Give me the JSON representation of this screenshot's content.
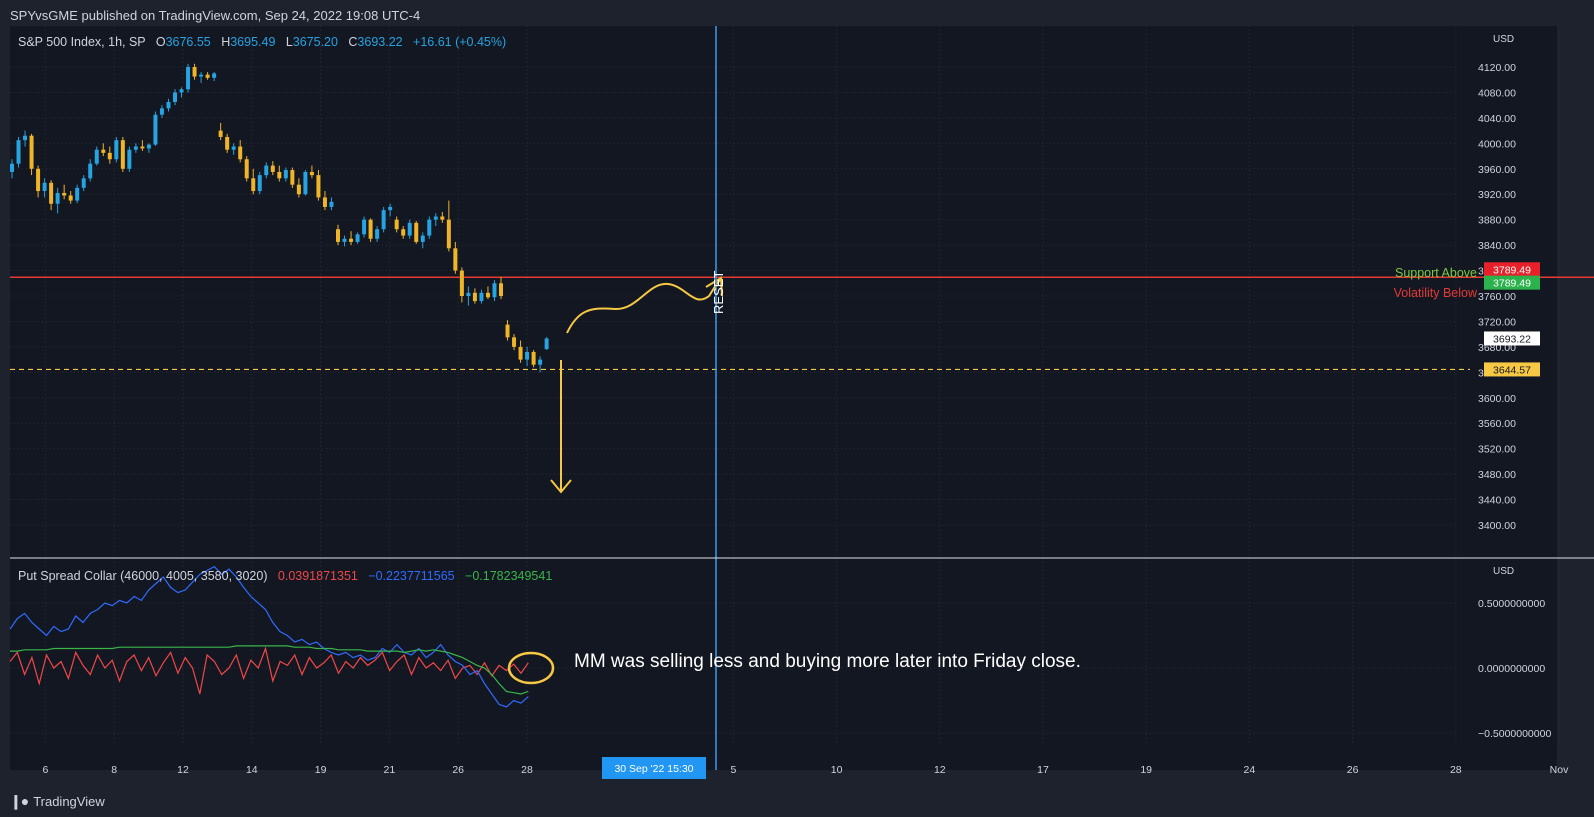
{
  "header": {
    "attribution": "SPYvsGME published on TradingView.com, Sep 24, 2022 19:08 UTC-4"
  },
  "footer": {
    "brand": "TradingView",
    "logo_icon": "tradingview-logo-icon"
  },
  "main_pane": {
    "symbol": "S&P 500 Index, 1h, SP",
    "open_label": "O",
    "open": "3676.55",
    "high_label": "H",
    "high": "3695.49",
    "low_label": "L",
    "low": "3675.20",
    "close_label": "C",
    "close": "3693.22",
    "change": "+16.61 (+0.45%)",
    "currency": "USD",
    "support_label": "Support Above",
    "volatility_label": "Volatility Below",
    "reset_label": "RESET"
  },
  "indicator_pane": {
    "title": "Put Spread Collar (46000, 4005, 3580, 3020)",
    "value_red": "0.0391871351",
    "value_blue": "−0.2237711565",
    "value_green": "−0.1782349541",
    "currency": "USD",
    "note": "MM was selling less and buying more later into Friday close."
  },
  "colors": {
    "background": "#131722",
    "frame": "#1e222d",
    "up": "#26a3e0",
    "down": "#f0b429",
    "support_line": "#e53935",
    "dashed_level": "#f7c843",
    "cursor_line": "#3d9be9",
    "annotation": "#f7c843",
    "series_red": "#f04848",
    "series_blue": "#2f6bff",
    "series_green": "#3ab54a"
  },
  "chart_data": [
    {
      "type": "candlestick",
      "title": "S&P 500 Index, 1h, SP",
      "y_axis_ticks": [
        3400,
        3440,
        3480,
        3520,
        3560,
        3600,
        3640,
        3680,
        3720,
        3760,
        3800,
        3840,
        3880,
        3920,
        3960,
        4000,
        4040,
        4080,
        4120
      ],
      "y_axis_labels": [
        "3400.00",
        "3440.00",
        "3480.00",
        "3520.00",
        "3560.00",
        "3600.00",
        "3640.00",
        "3680.00",
        "3720.00",
        "3760.00",
        "3800.00",
        "3840.00",
        "3880.00",
        "3920.00",
        "3960.00",
        "4000.00",
        "4040.00",
        "4080.00",
        "4120.00"
      ],
      "ylim": [
        3365,
        4160
      ],
      "x_axis_ticks": [
        {
          "label": "6",
          "t": 4
        },
        {
          "label": "8",
          "t": 12
        },
        {
          "label": "12",
          "t": 20
        },
        {
          "label": "14",
          "t": 28
        },
        {
          "label": "19",
          "t": 36
        },
        {
          "label": "21",
          "t": 44
        },
        {
          "label": "26",
          "t": 52
        },
        {
          "label": "28",
          "t": 60
        },
        {
          "label": "5",
          "t": 84
        },
        {
          "label": "10",
          "t": 96
        },
        {
          "label": "12",
          "t": 108
        },
        {
          "label": "17",
          "t": 120
        },
        {
          "label": "19",
          "t": 132
        },
        {
          "label": "24",
          "t": 144
        },
        {
          "label": "26",
          "t": 156
        },
        {
          "label": "28",
          "t": 168
        },
        {
          "label": "Nov",
          "t": 180
        }
      ],
      "cursor": {
        "label": "30 Sep '22   15:30",
        "t": 75
      },
      "price_labels": [
        {
          "label": "3789.49",
          "value": 3802,
          "kind": "support"
        },
        {
          "label": "3789.49",
          "value": 3781,
          "kind": "volatility"
        },
        {
          "label": "3693.22",
          "value": 3693.22,
          "kind": "last"
        },
        {
          "label": "3644.57",
          "value": 3644.57,
          "kind": "level"
        }
      ],
      "horizontal_levels": [
        {
          "value": 3789.49,
          "style": "solid"
        },
        {
          "value": 3644.57,
          "style": "dashed"
        }
      ],
      "series": [
        {
          "name": "S&P 500 Index",
          "ohlc": [
            [
              3955,
              3975,
              3945,
              3968
            ],
            [
              3968,
              4010,
              3962,
              4005
            ],
            [
              4005,
              4020,
              3995,
              4012
            ],
            [
              4012,
              4015,
              3950,
              3960
            ],
            [
              3960,
              3965,
              3915,
              3925
            ],
            [
              3925,
              3945,
              3915,
              3938
            ],
            [
              3938,
              3942,
              3895,
              3905
            ],
            [
              3905,
              3930,
              3890,
              3922
            ],
            [
              3922,
              3935,
              3912,
              3918
            ],
            [
              3918,
              3925,
              3905,
              3910
            ],
            [
              3910,
              3935,
              3906,
              3930
            ],
            [
              3930,
              3950,
              3925,
              3945
            ],
            [
              3945,
              3975,
              3940,
              3968
            ],
            [
              3968,
              3995,
              3965,
              3990
            ],
            [
              3990,
              4000,
              3980,
              3985
            ],
            [
              3985,
              3995,
              3968,
              3975
            ],
            [
              3975,
              4010,
              3970,
              4005
            ],
            [
              4005,
              4010,
              3955,
              3960
            ],
            [
              3960,
              3995,
              3955,
              3990
            ],
            [
              3990,
              4000,
              3985,
              3995
            ],
            [
              3995,
              4005,
              3988,
              3992
            ],
            [
              3992,
              4000,
              3985,
              3998
            ],
            [
              3998,
              4050,
              3996,
              4045
            ],
            [
              4045,
              4060,
              4040,
              4055
            ],
            [
              4055,
              4070,
              4050,
              4065
            ],
            [
              4065,
              4085,
              4060,
              4080
            ],
            [
              4080,
              4088,
              4072,
              4085
            ],
            [
              4085,
              4125,
              4080,
              4120
            ],
            [
              4120,
              4125,
              4100,
              4105
            ],
            [
              4105,
              4112,
              4095,
              4108
            ],
            [
              4108,
              4112,
              4100,
              4103
            ],
            [
              4103,
              4112,
              4098,
              4110
            ],
            [
              4020,
              4032,
              4005,
              4010
            ],
            [
              4010,
              4015,
              3985,
              3990
            ],
            [
              3990,
              4000,
              3982,
              3995
            ],
            [
              3995,
              4005,
              3970,
              3975
            ],
            [
              3975,
              3980,
              3940,
              3945
            ],
            [
              3945,
              3960,
              3920,
              3925
            ],
            [
              3925,
              3955,
              3920,
              3950
            ],
            [
              3950,
              3970,
              3945,
              3965
            ],
            [
              3965,
              3972,
              3950,
              3955
            ],
            [
              3955,
              3965,
              3940,
              3945
            ],
            [
              3945,
              3962,
              3940,
              3958
            ],
            [
              3958,
              3962,
              3930,
              3935
            ],
            [
              3935,
              3945,
              3915,
              3920
            ],
            [
              3920,
              3958,
              3918,
              3955
            ],
            [
              3955,
              3965,
              3945,
              3950
            ],
            [
              3950,
              3958,
              3910,
              3915
            ],
            [
              3915,
              3925,
              3895,
              3900
            ],
            [
              3900,
              3915,
              3895,
              3908
            ],
            [
              3865,
              3872,
              3840,
              3845
            ],
            [
              3845,
              3855,
              3838,
              3850
            ],
            [
              3850,
              3862,
              3840,
              3845
            ],
            [
              3845,
              3860,
              3842,
              3857
            ],
            [
              3857,
              3885,
              3852,
              3880
            ],
            [
              3880,
              3882,
              3845,
              3850
            ],
            [
              3850,
              3870,
              3845,
              3865
            ],
            [
              3865,
              3900,
              3860,
              3895
            ],
            [
              3895,
              3905,
              3885,
              3900
            ],
            [
              3880,
              3885,
              3860,
              3865
            ],
            [
              3865,
              3870,
              3850,
              3855
            ],
            [
              3855,
              3880,
              3850,
              3875
            ],
            [
              3875,
              3878,
              3842,
              3845
            ],
            [
              3845,
              3860,
              3835,
              3855
            ],
            [
              3855,
              3885,
              3850,
              3880
            ],
            [
              3880,
              3890,
              3870,
              3885
            ],
            [
              3885,
              3892,
              3875,
              3880
            ],
            [
              3880,
              3910,
              3830,
              3835
            ],
            [
              3835,
              3845,
              3795,
              3800
            ],
            [
              3800,
              3805,
              3750,
              3760
            ],
            [
              3760,
              3775,
              3745,
              3765
            ],
            [
              3765,
              3772,
              3748,
              3752
            ],
            [
              3752,
              3770,
              3748,
              3765
            ],
            [
              3765,
              3775,
              3755,
              3758
            ],
            [
              3758,
              3785,
              3752,
              3780
            ],
            [
              3780,
              3790,
              3755,
              3760
            ],
            [
              3715,
              3722,
              3690,
              3695
            ],
            [
              3695,
              3700,
              3675,
              3680
            ],
            [
              3680,
              3690,
              3655,
              3660
            ],
            [
              3660,
              3680,
              3650,
              3672
            ],
            [
              3672,
              3675,
              3648,
              3652
            ],
            [
              3652,
              3665,
              3640,
              3660
            ],
            [
              3676.55,
              3695.49,
              3675.2,
              3693.22
            ]
          ]
        }
      ]
    },
    {
      "type": "line",
      "title": "Put Spread Collar (46000, 4005, 3580, 3020)",
      "y_axis_ticks": [
        0.5,
        0,
        -0.5
      ],
      "y_axis_labels": [
        "0.5000000000",
        "0.0000000000",
        "−0.5000000000"
      ],
      "ylim": [
        -0.72,
        0.82
      ],
      "series": [
        {
          "name": "0.0391871351",
          "color": "red",
          "values": [
            0.05,
            0.12,
            -0.05,
            0.08,
            -0.12,
            0.1,
            0.0,
            0.05,
            -0.08,
            0.12,
            0.02,
            -0.05,
            0.1,
            0.0,
            0.06,
            -0.1,
            0.05,
            0.1,
            -0.02,
            0.08,
            -0.06,
            0.04,
            0.12,
            -0.04,
            0.08,
            0.0,
            -0.2,
            0.1,
            0.05,
            -0.05,
            0.0,
            0.1,
            -0.08,
            0.06,
            0.0,
            0.15,
            -0.1,
            0.05,
            0.02,
            0.1,
            -0.05,
            0.08,
            0.0,
            0.04,
            0.1,
            -0.04,
            0.05,
            0.0,
            0.08,
            0.02,
            0.06,
            0.12,
            -0.02,
            0.05,
            0.1,
            -0.05,
            0.08,
            0.0,
            0.04,
            -0.02,
            0.06,
            -0.08,
            0.0,
            0.02,
            -0.05,
            0.04,
            -0.06,
            0.02,
            -0.02,
            0.03,
            -0.04,
            0.04
          ]
        },
        {
          "name": "−0.2237711565",
          "color": "blue",
          "values": [
            0.3,
            0.38,
            0.42,
            0.35,
            0.3,
            0.25,
            0.32,
            0.28,
            0.3,
            0.4,
            0.35,
            0.42,
            0.45,
            0.5,
            0.48,
            0.52,
            0.5,
            0.55,
            0.52,
            0.6,
            0.65,
            0.7,
            0.62,
            0.58,
            0.6,
            0.66,
            0.72,
            0.75,
            0.78,
            0.72,
            0.76,
            0.7,
            0.62,
            0.55,
            0.5,
            0.45,
            0.35,
            0.28,
            0.25,
            0.2,
            0.22,
            0.18,
            0.2,
            0.15,
            0.12,
            0.1,
            0.12,
            0.08,
            0.1,
            0.06,
            0.08,
            0.15,
            0.12,
            0.18,
            0.12,
            0.1,
            0.15,
            0.08,
            0.12,
            0.18,
            0.1,
            0.05,
            0.02,
            -0.05,
            -0.02,
            -0.12,
            -0.2,
            -0.28,
            -0.3,
            -0.25,
            -0.27,
            -0.22
          ]
        },
        {
          "name": "−0.1782349541",
          "color": "green",
          "values": [
            0.13,
            0.13,
            0.14,
            0.14,
            0.14,
            0.14,
            0.15,
            0.15,
            0.15,
            0.15,
            0.15,
            0.15,
            0.15,
            0.15,
            0.15,
            0.16,
            0.16,
            0.16,
            0.16,
            0.16,
            0.16,
            0.16,
            0.16,
            0.16,
            0.16,
            0.16,
            0.16,
            0.16,
            0.16,
            0.16,
            0.16,
            0.17,
            0.17,
            0.17,
            0.17,
            0.17,
            0.17,
            0.17,
            0.17,
            0.16,
            0.16,
            0.16,
            0.15,
            0.15,
            0.15,
            0.14,
            0.14,
            0.14,
            0.14,
            0.13,
            0.13,
            0.13,
            0.13,
            0.13,
            0.12,
            0.13,
            0.14,
            0.13,
            0.14,
            0.13,
            0.12,
            0.1,
            0.08,
            0.05,
            0.02,
            0.0,
            -0.05,
            -0.12,
            -0.18,
            -0.19,
            -0.2,
            -0.18
          ]
        }
      ]
    }
  ]
}
